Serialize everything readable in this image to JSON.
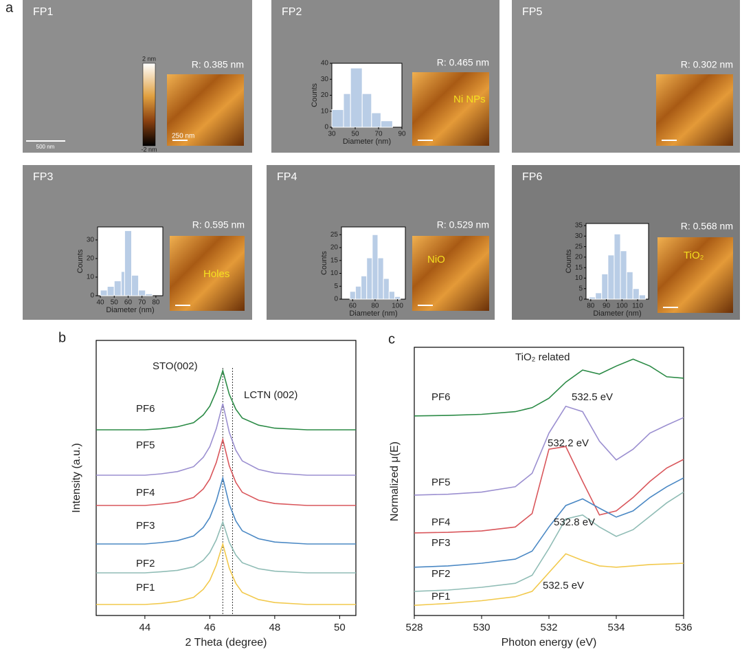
{
  "figure": {
    "panel_labels": [
      "a",
      "b",
      "c"
    ],
    "images": [
      {
        "label": "FP1",
        "roughness": "R: 0.385 nm",
        "scale_bar": "500 nm",
        "inset_scale_bar": "250 nm",
        "colorbar_max": "2 nm",
        "colorbar_min": "-2 nm"
      },
      {
        "label": "FP2",
        "roughness": "R: 0.465 nm",
        "feature": "Ni NPs"
      },
      {
        "label": "FP5",
        "roughness": "R: 0.302 nm"
      },
      {
        "label": "FP3",
        "roughness": "R: 0.595 nm",
        "feature": "Holes"
      },
      {
        "label": "FP4",
        "roughness": "R: 0.529 nm",
        "feature": "NiO"
      },
      {
        "label": "FP6",
        "roughness": "R: 0.568 nm",
        "feature": "TiO₂"
      }
    ]
  },
  "chart_data": [
    {
      "type": "histogram",
      "x_label": "Diameter (nm)",
      "y_label": "Counts",
      "color": "#b9cde6",
      "bins": [
        30,
        40,
        46,
        56,
        64,
        72,
        82
      ],
      "values": [
        11,
        21,
        37,
        21,
        9,
        4
      ],
      "xlim": [
        30,
        90
      ],
      "xticks": [
        30,
        50,
        70,
        90
      ],
      "ylim": [
        0,
        40
      ],
      "yticks": [
        0,
        10,
        20,
        30,
        40
      ]
    },
    {
      "type": "histogram",
      "x_label": "Diameter (nm)",
      "y_label": "Counts",
      "color": "#b9cde6",
      "bins": [
        40,
        45,
        50,
        55,
        57.5,
        62.5,
        67.5,
        72.5,
        77.5
      ],
      "values": [
        3,
        5,
        8,
        13,
        35,
        11,
        3,
        1
      ],
      "xlim": [
        38,
        85
      ],
      "xticks": [
        40,
        50,
        60,
        70,
        80
      ],
      "ylim": [
        0,
        37
      ],
      "yticks": [
        0,
        10,
        20,
        30
      ]
    },
    {
      "type": "histogram",
      "x_label": "Diameter (nm)",
      "y_label": "Counts",
      "color": "#b9cde6",
      "bins": [
        57.5,
        62.5,
        67.5,
        72.5,
        77.5,
        82.5,
        87.5,
        92.5,
        97.5,
        102.5
      ],
      "values": [
        3,
        5,
        9,
        16,
        25,
        16,
        8,
        3,
        1
      ],
      "xlim": [
        50,
        107
      ],
      "xticks": [
        60,
        80,
        100
      ],
      "ylim": [
        0,
        28
      ],
      "yticks": [
        0,
        5,
        10,
        15,
        20,
        25
      ]
    },
    {
      "type": "histogram",
      "x_label": "Diameter (nm)",
      "y_label": "Counts",
      "color": "#b9cde6",
      "bins": [
        79,
        83,
        87,
        91,
        95,
        99,
        103,
        107,
        111,
        115
      ],
      "values": [
        1,
        3,
        12,
        21,
        31,
        23,
        13,
        5,
        2
      ],
      "xlim": [
        77,
        117
      ],
      "xticks": [
        80,
        90,
        100,
        110
      ],
      "ylim": [
        0,
        36
      ],
      "yticks": [
        0,
        5,
        10,
        15,
        20,
        25,
        30,
        35
      ]
    },
    {
      "type": "line",
      "x_label": "2 Theta (degree)",
      "y_label": "Intensity (a.u.)",
      "xlim": [
        42.5,
        50.5
      ],
      "xticks": [
        44,
        46,
        48,
        50
      ],
      "ylim": [
        0,
        10
      ],
      "reference_lines": [
        46.4,
        46.7
      ],
      "annotations": [
        "STO(002)",
        "LCTN (002)"
      ],
      "x": [
        42.5,
        43,
        43.5,
        44,
        44.5,
        45,
        45.5,
        45.8,
        46.0,
        46.2,
        46.4,
        46.6,
        46.8,
        47.0,
        47.5,
        48,
        49,
        50,
        50.5
      ],
      "series": [
        {
          "name": "PF6",
          "color": "#2a8a45",
          "values": [
            6.75,
            6.75,
            6.75,
            6.75,
            6.79,
            6.86,
            7.01,
            7.29,
            7.61,
            8.15,
            8.9,
            8.04,
            7.5,
            7.18,
            6.92,
            6.81,
            6.75,
            6.75,
            6.75
          ]
        },
        {
          "name": "PF5",
          "color": "#9b8fd0",
          "values": [
            5.1,
            5.1,
            5.1,
            5.1,
            5.15,
            5.23,
            5.41,
            5.75,
            6.14,
            6.79,
            7.7,
            6.66,
            6.01,
            5.62,
            5.31,
            5.18,
            5.1,
            5.1,
            5.1
          ]
        },
        {
          "name": "PF4",
          "color": "#d9565b",
          "values": [
            4,
            4,
            4,
            4,
            4.05,
            4.12,
            4.29,
            4.6,
            4.96,
            5.56,
            6.4,
            5.44,
            4.84,
            4.48,
            4.19,
            4.07,
            4,
            4,
            4
          ]
        },
        {
          "name": "PF3",
          "color": "#4a88c4",
          "values": [
            2.6,
            2.6,
            2.6,
            2.6,
            2.65,
            2.72,
            2.89,
            3.2,
            3.56,
            4.16,
            5.0,
            4.04,
            3.44,
            3.08,
            2.79,
            2.67,
            2.6,
            2.6,
            2.6
          ]
        },
        {
          "name": "PF2",
          "color": "#8fbcb5",
          "values": [
            1.55,
            1.55,
            1.55,
            1.55,
            1.59,
            1.64,
            1.77,
            2.01,
            2.29,
            2.75,
            3.4,
            2.66,
            2.2,
            1.92,
            1.7,
            1.61,
            1.55,
            1.55,
            1.55
          ]
        },
        {
          "name": "PF1",
          "color": "#f2c94c",
          "values": [
            0.4,
            0.4,
            0.4,
            0.4,
            0.44,
            0.51,
            0.66,
            0.95,
            1.28,
            1.83,
            2.6,
            1.72,
            1.17,
            0.84,
            0.58,
            0.47,
            0.4,
            0.4,
            0.4
          ]
        }
      ]
    },
    {
      "type": "line",
      "x_label": "Photon energy (eV)",
      "y_label": "Normalized μ(E)",
      "xlim": [
        528,
        536
      ],
      "xticks": [
        528,
        530,
        532,
        534,
        536
      ],
      "ylim": [
        0,
        10
      ],
      "annotations": [
        "TiO₂ related",
        "532.5 eV",
        "532.2 eV",
        "532.8 eV",
        "532.5 eV"
      ],
      "x": [
        528,
        529,
        530,
        531,
        531.5,
        532,
        532.5,
        533,
        533.5,
        534,
        534.5,
        535,
        535.5,
        536
      ],
      "series": [
        {
          "name": "PF6",
          "color": "#2a8a45",
          "values": [
            7.44,
            7.46,
            7.5,
            7.6,
            7.75,
            8.1,
            8.7,
            9.15,
            9.0,
            9.3,
            9.56,
            9.3,
            8.9,
            8.85
          ]
        },
        {
          "name": "PF5",
          "color": "#9b8fd0",
          "values": [
            4.49,
            4.52,
            4.6,
            4.8,
            5.3,
            6.8,
            7.8,
            7.6,
            6.5,
            5.8,
            6.2,
            6.8,
            7.1,
            7.38
          ]
        },
        {
          "name": "PF4",
          "color": "#d9565b",
          "values": [
            3.08,
            3.1,
            3.15,
            3.3,
            3.8,
            6.2,
            6.3,
            5.0,
            3.75,
            3.9,
            4.4,
            5.0,
            5.5,
            5.82
          ]
        },
        {
          "name": "PF3",
          "color": "#4a88c4",
          "values": [
            1.8,
            1.85,
            1.95,
            2.1,
            2.4,
            3.3,
            4.1,
            4.35,
            4.0,
            3.67,
            3.9,
            4.4,
            4.8,
            5.13
          ]
        },
        {
          "name": "PF2",
          "color": "#8fbcb5",
          "values": [
            0.9,
            0.95,
            1.05,
            1.2,
            1.5,
            2.5,
            3.6,
            3.75,
            3.3,
            2.95,
            3.2,
            3.7,
            4.2,
            4.6
          ]
        },
        {
          "name": "PF1",
          "color": "#f2c94c",
          "values": [
            0.38,
            0.45,
            0.55,
            0.7,
            0.9,
            1.6,
            2.3,
            2.05,
            1.85,
            1.8,
            1.85,
            1.9,
            1.92,
            1.95
          ]
        }
      ]
    }
  ]
}
